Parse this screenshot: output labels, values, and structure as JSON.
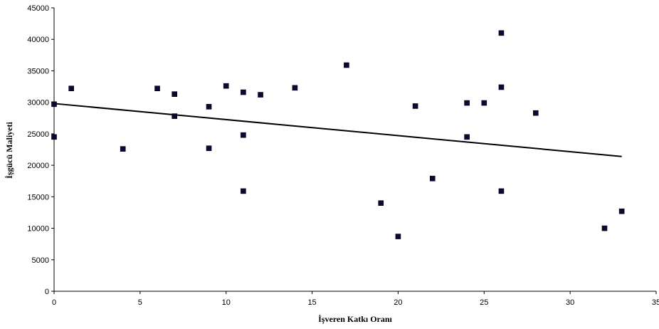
{
  "chart_data": {
    "type": "scatter",
    "title": "",
    "xlabel": "İşveren Katkı Oranı",
    "ylabel": "İşgücü Maliyeti",
    "xlim": [
      0,
      35
    ],
    "ylim": [
      0,
      45000
    ],
    "x_ticks": [
      0,
      5,
      10,
      15,
      20,
      25,
      30,
      35
    ],
    "y_ticks": [
      0,
      5000,
      10000,
      15000,
      20000,
      25000,
      30000,
      35000,
      40000,
      45000
    ],
    "grid": false,
    "legend": "none",
    "marker_color": "#0a0a3a",
    "line_color": "#000000",
    "series": [
      {
        "points": [
          [
            0,
            29700
          ],
          [
            0,
            24500
          ],
          [
            1,
            32200
          ],
          [
            4,
            22600
          ],
          [
            6,
            32200
          ],
          [
            7,
            31300
          ],
          [
            7,
            27800
          ],
          [
            9,
            29300
          ],
          [
            9,
            22700
          ],
          [
            10,
            32600
          ],
          [
            11,
            31600
          ],
          [
            11,
            24800
          ],
          [
            11,
            15900
          ],
          [
            12,
            31200
          ],
          [
            14,
            32300
          ],
          [
            17,
            35900
          ],
          [
            19,
            14000
          ],
          [
            20,
            8700
          ],
          [
            21,
            29400
          ],
          [
            22,
            17900
          ],
          [
            24,
            29900
          ],
          [
            24,
            24500
          ],
          [
            25,
            29900
          ],
          [
            26,
            41000
          ],
          [
            26,
            32400
          ],
          [
            26,
            15900
          ],
          [
            28,
            28300
          ],
          [
            32,
            10000
          ],
          [
            33,
            12700
          ]
        ]
      }
    ],
    "trendline": {
      "x": [
        0,
        33
      ],
      "y": [
        29800,
        21400
      ]
    }
  }
}
